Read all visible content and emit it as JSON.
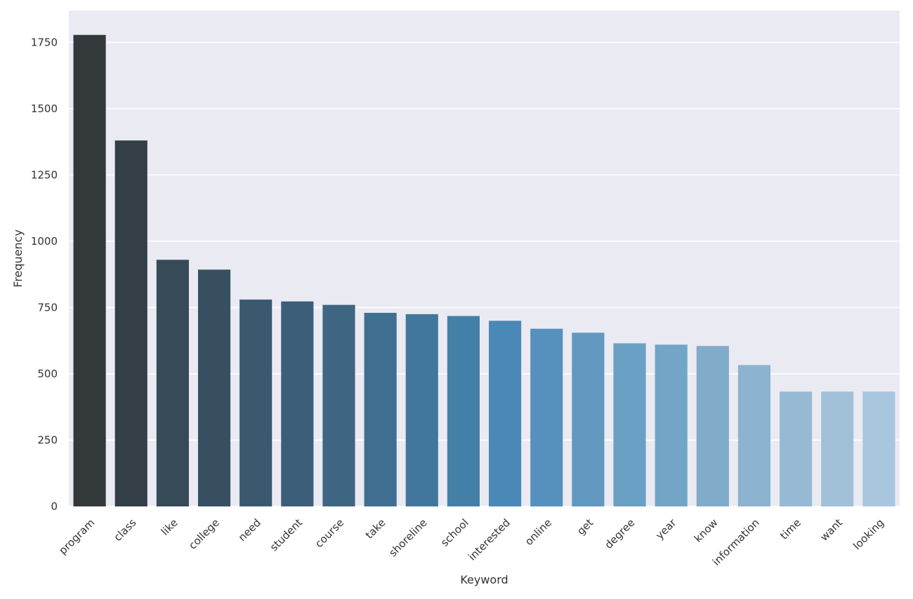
{
  "chart_data": {
    "type": "bar",
    "title": "",
    "xlabel": "Keyword",
    "ylabel": "Frequency",
    "ylim": [
      0,
      1870
    ],
    "yticks": [
      0,
      250,
      500,
      750,
      1000,
      1250,
      1500,
      1750
    ],
    "grid": true,
    "categories": [
      "program",
      "class",
      "like",
      "college",
      "need",
      "student",
      "course",
      "take",
      "shoreline",
      "school",
      "interested",
      "online",
      "get",
      "degree",
      "year",
      "know",
      "information",
      "time",
      "want",
      "looking"
    ],
    "values": [
      1778,
      1380,
      930,
      893,
      780,
      773,
      760,
      730,
      725,
      718,
      700,
      670,
      655,
      615,
      610,
      605,
      533,
      433,
      433,
      433
    ],
    "colors": [
      "#33383b",
      "#343e47",
      "#364a57",
      "#384f61",
      "#3b596e",
      "#3c5e79",
      "#3e6582",
      "#3f6e91",
      "#41779c",
      "#447fa8",
      "#4a88b7",
      "#5591bc",
      "#6198c0",
      "#6aa0c3",
      "#72a5c6",
      "#80abc9",
      "#8cb3cf",
      "#96bad4",
      "#a0c0d8",
      "#a8c7de"
    ]
  }
}
